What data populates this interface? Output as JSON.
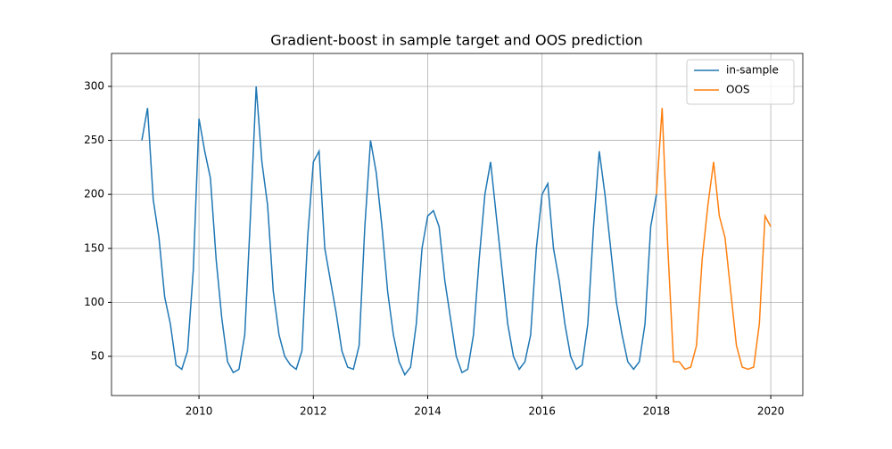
{
  "chart_data": {
    "type": "line",
    "title": "Gradient-boost in sample target and OOS prediction",
    "xlim": [
      2008.47,
      2020.56
    ],
    "xticks": [
      2010,
      2012,
      2014,
      2016,
      2018,
      2020
    ],
    "ylim": [
      13.7,
      330.5
    ],
    "yticks": [
      50,
      100,
      150,
      200,
      250,
      300
    ],
    "grid": true,
    "legend": "upper right",
    "series": [
      {
        "name": "in-sample",
        "color": "#1f77b4",
        "x": [
          2009.0,
          2009.1,
          2009.2,
          2009.3,
          2009.4,
          2009.5,
          2009.6,
          2009.7,
          2009.8,
          2009.9,
          2010.0,
          2010.1,
          2010.2,
          2010.3,
          2010.4,
          2010.5,
          2010.6,
          2010.7,
          2010.8,
          2010.9,
          2011.0,
          2011.1,
          2011.2,
          2011.3,
          2011.4,
          2011.5,
          2011.6,
          2011.7,
          2011.8,
          2011.9,
          2012.0,
          2012.1,
          2012.2,
          2012.3,
          2012.4,
          2012.5,
          2012.6,
          2012.7,
          2012.8,
          2012.9,
          2013.0,
          2013.1,
          2013.2,
          2013.3,
          2013.4,
          2013.5,
          2013.6,
          2013.7,
          2013.8,
          2013.9,
          2014.0,
          2014.1,
          2014.2,
          2014.3,
          2014.4,
          2014.5,
          2014.6,
          2014.7,
          2014.8,
          2014.9,
          2015.0,
          2015.1,
          2015.2,
          2015.3,
          2015.4,
          2015.5,
          2015.6,
          2015.7,
          2015.8,
          2015.9,
          2016.0,
          2016.1,
          2016.2,
          2016.3,
          2016.4,
          2016.5,
          2016.6,
          2016.7,
          2016.8,
          2016.9,
          2017.0,
          2017.1,
          2017.2,
          2017.3,
          2017.4,
          2017.5,
          2017.6,
          2017.7,
          2017.8,
          2017.9,
          2018.0
        ],
        "values": [
          250,
          280,
          195,
          160,
          105,
          80,
          42,
          38,
          55,
          130,
          270,
          240,
          215,
          140,
          85,
          45,
          35,
          38,
          70,
          180,
          300,
          230,
          190,
          110,
          70,
          50,
          42,
          38,
          55,
          160,
          230,
          240,
          150,
          120,
          90,
          55,
          40,
          38,
          60,
          170,
          250,
          220,
          170,
          110,
          70,
          45,
          33,
          40,
          80,
          150,
          180,
          185,
          170,
          120,
          85,
          50,
          35,
          38,
          70,
          140,
          200,
          230,
          180,
          130,
          80,
          50,
          38,
          45,
          70,
          150,
          200,
          210,
          150,
          120,
          80,
          50,
          38,
          42,
          80,
          170,
          240,
          200,
          150,
          100,
          70,
          45,
          38,
          45,
          80,
          170,
          200
        ]
      },
      {
        "name": "OOS",
        "color": "#ff7f0e",
        "x": [
          2018.0,
          2018.1,
          2018.2,
          2018.3,
          2018.4,
          2018.5,
          2018.6,
          2018.7,
          2018.8,
          2018.9,
          2019.0,
          2019.1,
          2019.2,
          2019.3,
          2019.4,
          2019.5,
          2019.6,
          2019.7,
          2019.8,
          2019.9,
          2020.0
        ],
        "values": [
          200,
          280,
          150,
          45,
          45,
          38,
          40,
          60,
          140,
          190,
          230,
          180,
          160,
          110,
          60,
          40,
          38,
          40,
          80,
          180,
          170
        ]
      }
    ]
  }
}
